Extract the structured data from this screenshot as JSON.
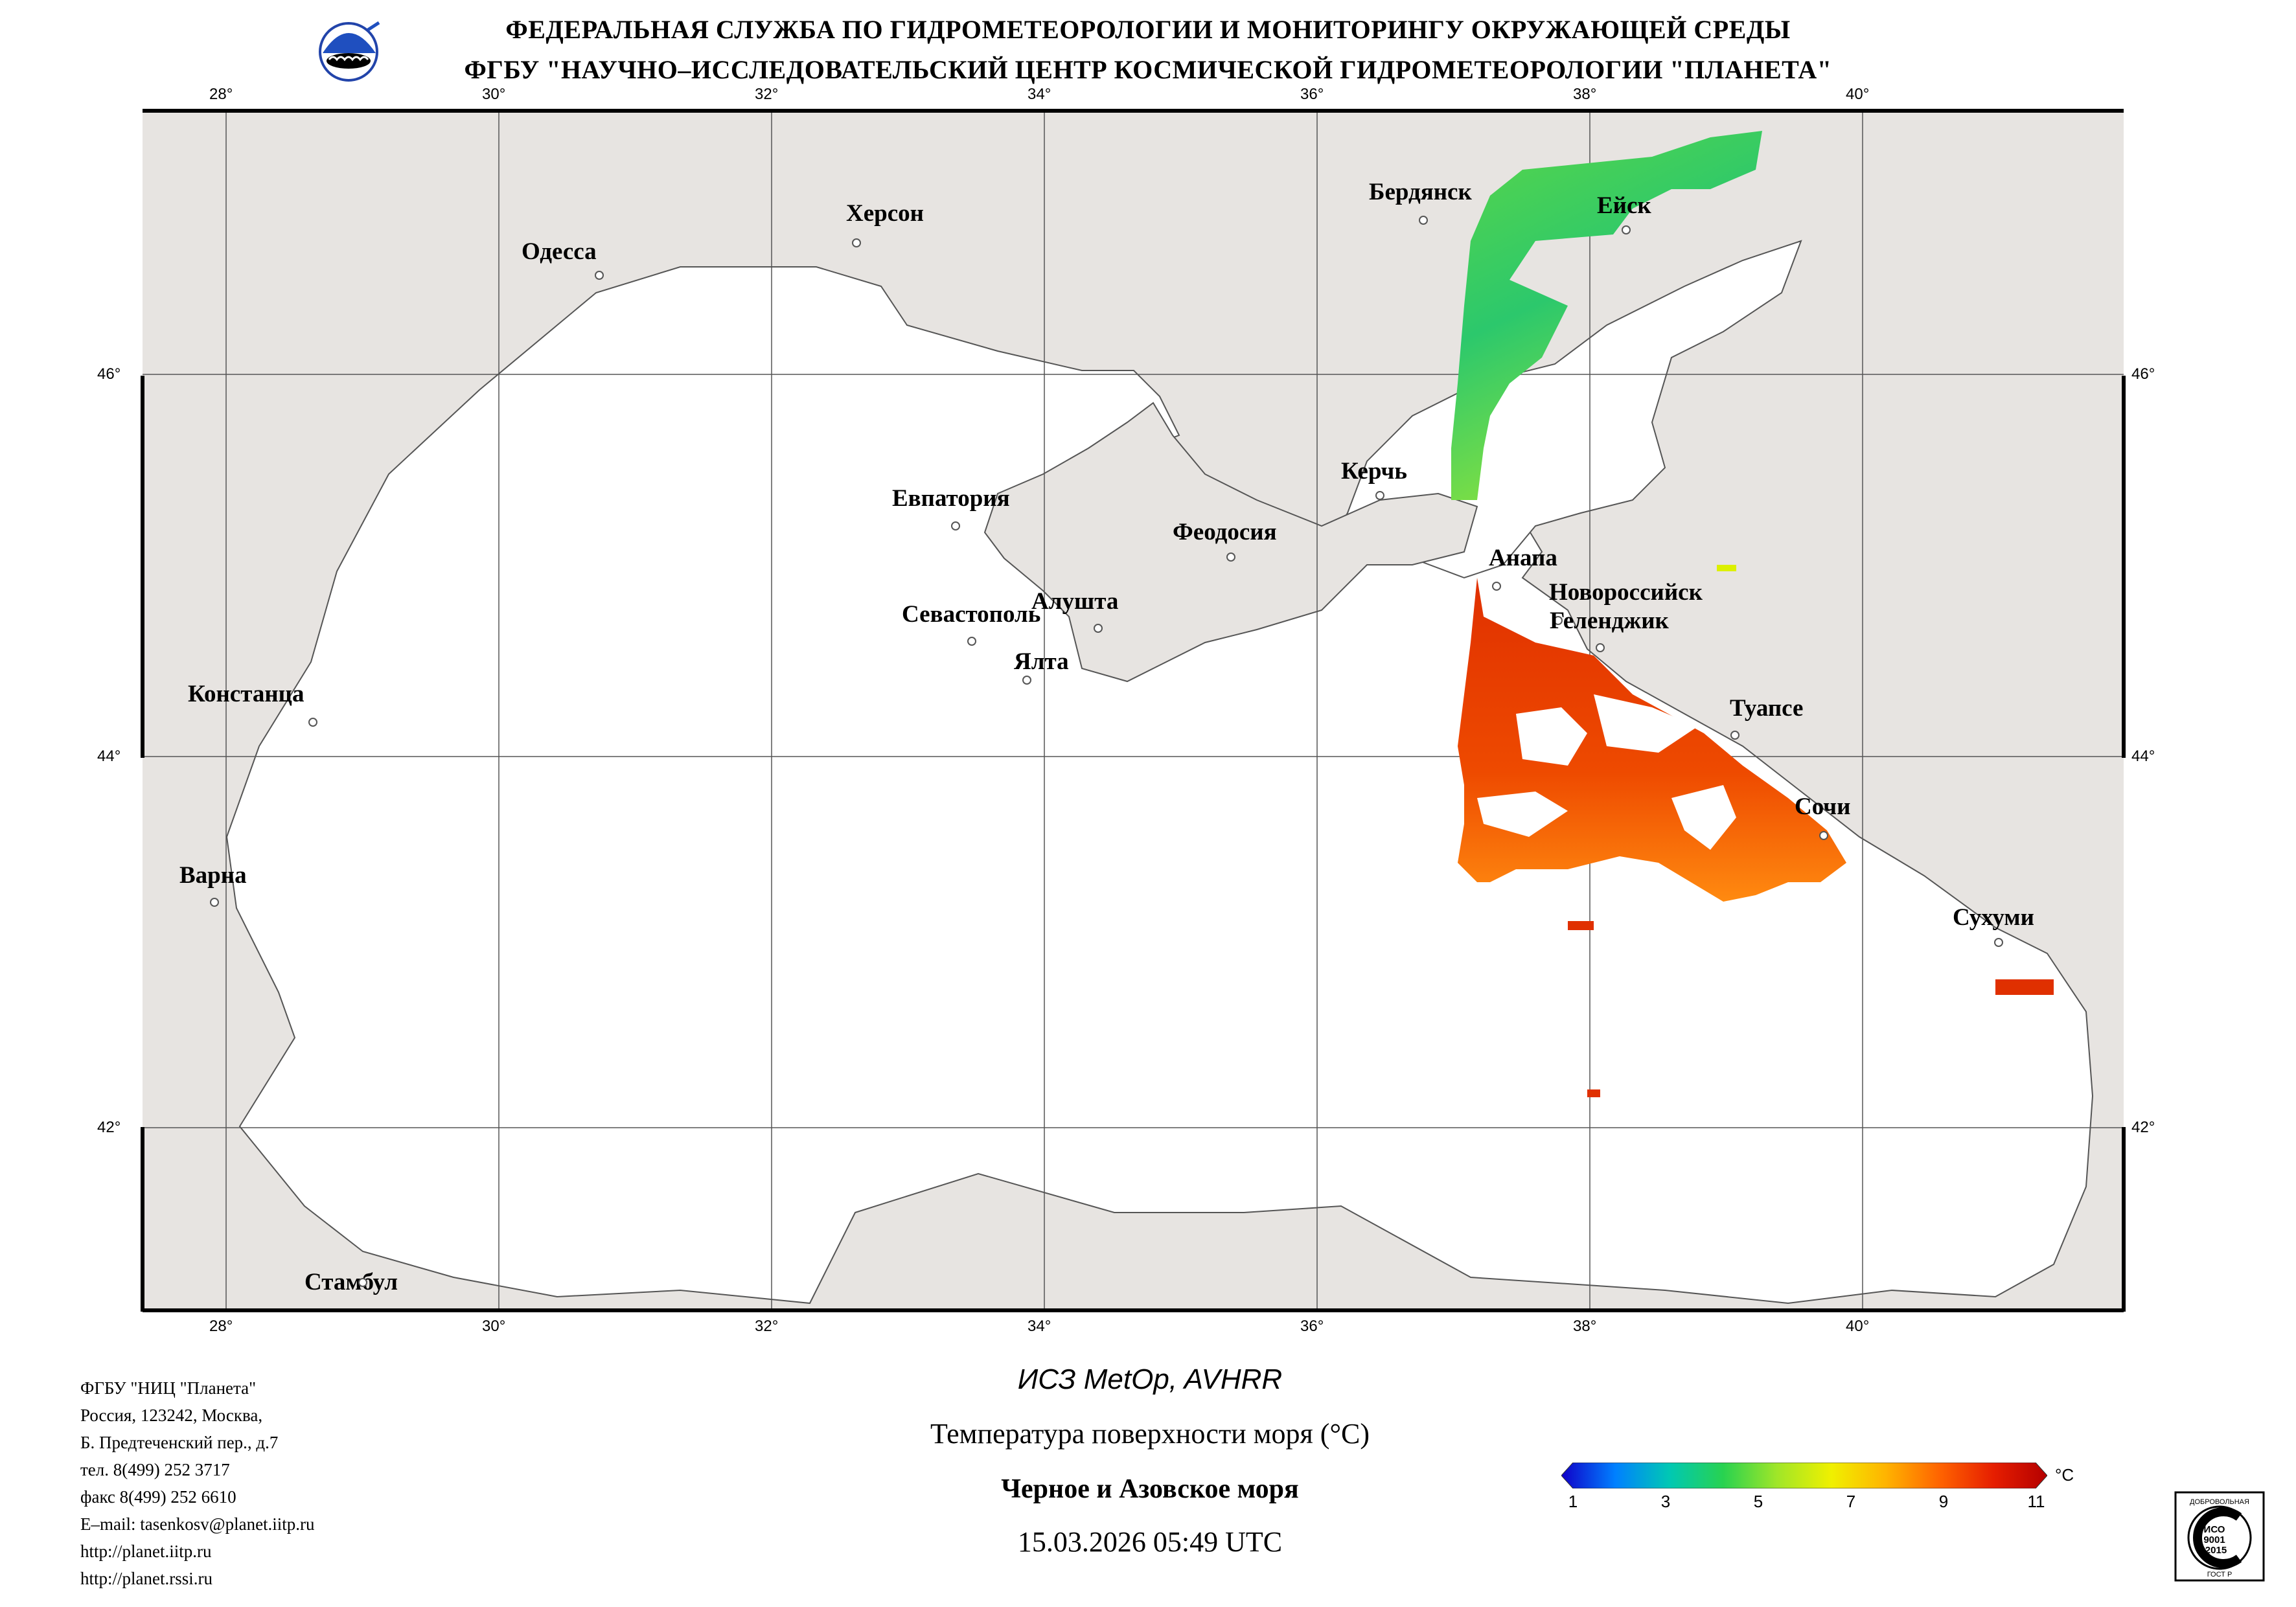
{
  "header": {
    "line1": "ФЕДЕРАЛЬНАЯ СЛУЖБА ПО ГИДРОМЕТЕОРОЛОГИИ И МОНИТОРИНГУ ОКРУЖАЮЩЕЙ СРЕДЫ",
    "line2": "ФГБУ \"НАУЧНО–ИССЛЕДОВАТЕЛЬСКИЙ ЦЕНТР КОСМИЧЕСКОЙ ГИДРОМЕТЕОРОЛОГИИ \"ПЛАНЕТА\""
  },
  "map": {
    "lon_ticks": [
      "28°",
      "30°",
      "32°",
      "34°",
      "36°",
      "38°",
      "40°"
    ],
    "lat_ticks": [
      "46°",
      "44°",
      "42°"
    ],
    "colors": {
      "land": "#e7e4e1",
      "sea": "#ffffff",
      "coast": "#555555",
      "grid": "#555555"
    },
    "cities": [
      {
        "name": "Одесса"
      },
      {
        "name": "Херсон"
      },
      {
        "name": "Бердянск"
      },
      {
        "name": "Ейск"
      },
      {
        "name": "Евпатория"
      },
      {
        "name": "Керчь"
      },
      {
        "name": "Феодосия"
      },
      {
        "name": "Анапа"
      },
      {
        "name": "Новороссийск"
      },
      {
        "name": "Геленджик"
      },
      {
        "name": "Севастополь"
      },
      {
        "name": "Алушта"
      },
      {
        "name": "Ялта"
      },
      {
        "name": "Констанца"
      },
      {
        "name": "Туапсе"
      },
      {
        "name": "Сочи"
      },
      {
        "name": "Варна"
      },
      {
        "name": "Сухуми"
      },
      {
        "name": "Стамбул"
      }
    ]
  },
  "org_info": {
    "lines": [
      "ФГБУ \"НИЦ \"Планета\"",
      "Россия, 123242, Москва,",
      "Б. Предтеченский пер., д.7",
      "тел. 8(499) 252 3717",
      "факс 8(499) 252 6610",
      "E–mail: tasenkosv@planet.iitp.ru",
      "http://planet.iitp.ru",
      "http://planet.rssi.ru"
    ]
  },
  "caption": {
    "satellite": "ИСЗ MetOp, AVHRR",
    "parameter": "Температура поверхности моря (°С)",
    "region": "Черное и Азовское моря",
    "datetime": "15.03.2026 05:49 UTC"
  },
  "colorbar": {
    "ticks": [
      "1",
      "3",
      "5",
      "7",
      "9",
      "11"
    ],
    "unit": "°С",
    "stops": [
      "#1000c8",
      "#0080ff",
      "#00c8b4",
      "#28d250",
      "#a0e628",
      "#f0f000",
      "#ffb400",
      "#ff6400",
      "#e61e00",
      "#b40000"
    ]
  },
  "logos": {
    "org_logo_text": "",
    "cert_lines": [
      "ДОБРОВОЛЬНАЯ",
      "ИСО",
      "9001",
      "-2015",
      "ГОСТ Р"
    ]
  }
}
